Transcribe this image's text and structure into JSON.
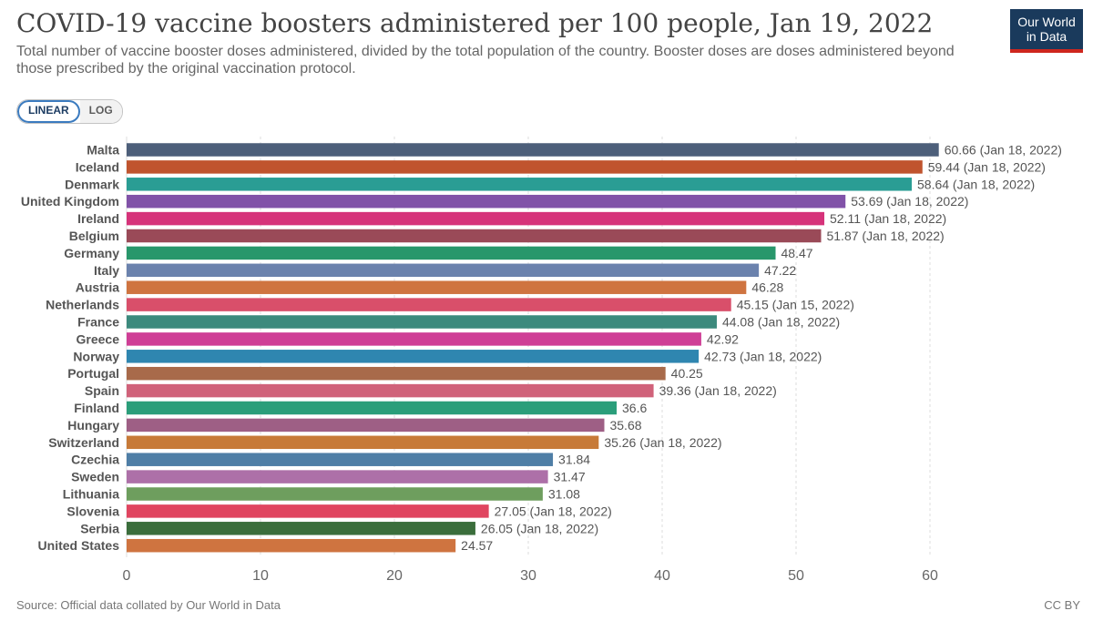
{
  "header": {
    "title": "COVID-19 vaccine boosters administered per 100 people, Jan 19, 2022",
    "subtitle": "Total number of vaccine booster doses administered, divided by the total population of the country. Booster doses are doses administered beyond those prescribed by the original vaccination protocol."
  },
  "logo": {
    "line1": "Our World",
    "line2": "in Data",
    "bg_color": "#1a3a5c",
    "accent_color": "#ce261e"
  },
  "scale_toggle": {
    "linear_label": "LINEAR",
    "log_label": "LOG",
    "selected": "LINEAR"
  },
  "footer": {
    "source": "Source: Official data collated by Our World in Data",
    "license": "CC BY"
  },
  "chart_data": {
    "type": "bar",
    "orientation": "horizontal",
    "title": "COVID-19 vaccine boosters administered per 100 people, Jan 19, 2022",
    "xlabel": "",
    "ylabel": "",
    "xlim": [
      0,
      62
    ],
    "xticks": [
      0,
      10,
      20,
      30,
      40,
      50,
      60
    ],
    "grid": "vertical dashed",
    "categories": [
      "Malta",
      "Iceland",
      "Denmark",
      "United Kingdom",
      "Ireland",
      "Belgium",
      "Germany",
      "Italy",
      "Austria",
      "Netherlands",
      "France",
      "Greece",
      "Norway",
      "Portugal",
      "Spain",
      "Finland",
      "Hungary",
      "Switzerland",
      "Czechia",
      "Sweden",
      "Lithuania",
      "Slovenia",
      "Serbia",
      "United States"
    ],
    "values": [
      60.66,
      59.44,
      58.64,
      53.69,
      52.11,
      51.87,
      48.47,
      47.22,
      46.28,
      45.15,
      44.08,
      42.92,
      42.73,
      40.25,
      39.36,
      36.6,
      35.68,
      35.26,
      31.84,
      31.47,
      31.08,
      27.05,
      26.05,
      24.57
    ],
    "labels": [
      "60.66 (Jan 18, 2022)",
      "59.44 (Jan 18, 2022)",
      "58.64 (Jan 18, 2022)",
      "53.69 (Jan 18, 2022)",
      "52.11 (Jan 18, 2022)",
      "51.87 (Jan 18, 2022)",
      "48.47",
      "47.22",
      "46.28",
      "45.15 (Jan 15, 2022)",
      "44.08 (Jan 18, 2022)",
      "42.92",
      "42.73 (Jan 18, 2022)",
      "40.25",
      "39.36 (Jan 18, 2022)",
      "36.6",
      "35.68",
      "35.26 (Jan 18, 2022)",
      "31.84",
      "31.47",
      "31.08",
      "27.05 (Jan 18, 2022)",
      "26.05 (Jan 18, 2022)",
      "24.57"
    ],
    "colors": [
      "#4d5f7a",
      "#c0542e",
      "#2a9d94",
      "#8152a8",
      "#d6337a",
      "#9a4a58",
      "#28976b",
      "#6b82ad",
      "#cf7440",
      "#d94f6a",
      "#3c8a7d",
      "#cf3f96",
      "#2f86b0",
      "#a86a4a",
      "#d0627a",
      "#2a9e7a",
      "#9e5f85",
      "#c77a38",
      "#4f7ea6",
      "#ad70a8",
      "#6e9e5e",
      "#e04560",
      "#3b6e3c",
      "#cf7440"
    ]
  }
}
